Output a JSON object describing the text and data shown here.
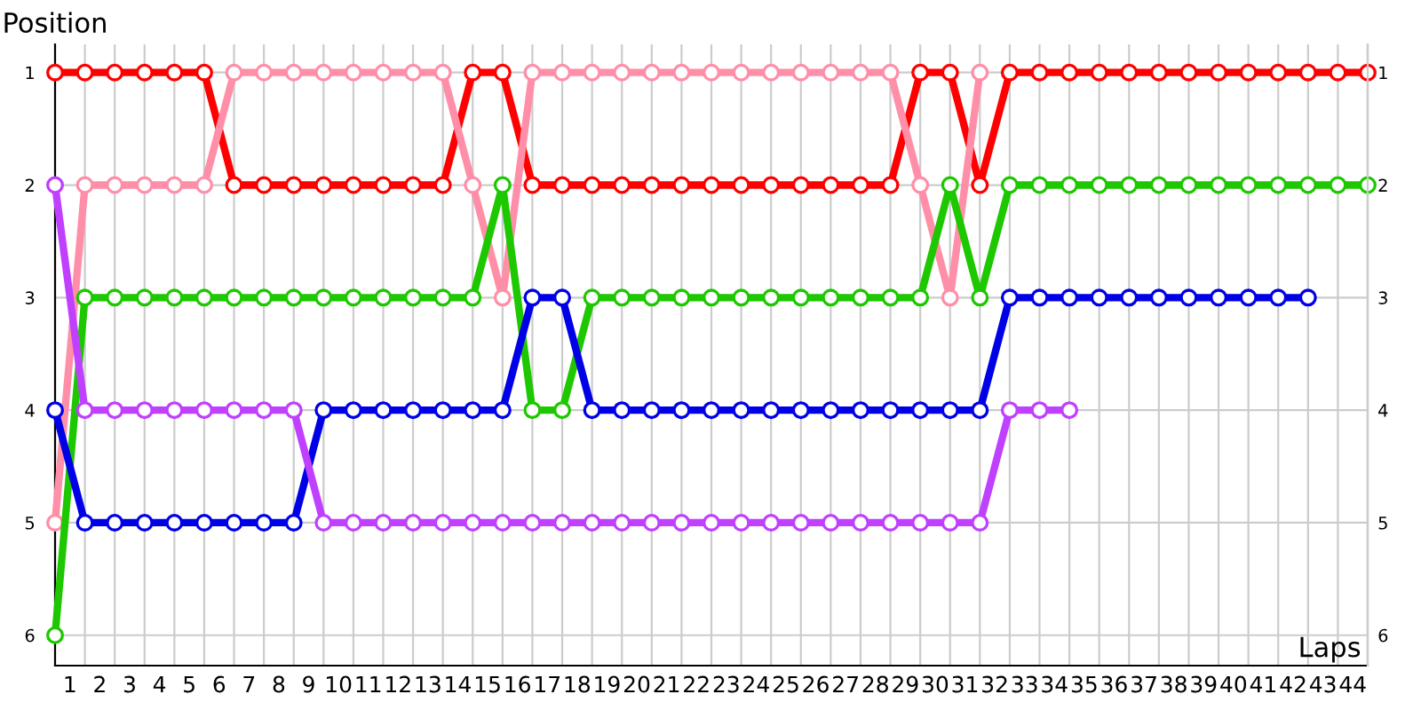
{
  "chart_data": {
    "type": "line",
    "xlabel": "Laps",
    "ylabel": "Position",
    "x": [
      0,
      1,
      2,
      3,
      4,
      5,
      6,
      7,
      8,
      9,
      10,
      11,
      12,
      13,
      14,
      15,
      16,
      17,
      18,
      19,
      20,
      21,
      22,
      23,
      24,
      25,
      26,
      27,
      28,
      29,
      30,
      31,
      32,
      33,
      34,
      35,
      36,
      37,
      38,
      39,
      40,
      41,
      42,
      43,
      44
    ],
    "series": [
      {
        "color": "#ff0000",
        "values": [
          1,
          1,
          1,
          1,
          1,
          1,
          2,
          2,
          2,
          2,
          2,
          2,
          2,
          2,
          1,
          1,
          2,
          2,
          2,
          2,
          2,
          2,
          2,
          2,
          2,
          2,
          2,
          2,
          2,
          1,
          1,
          2,
          1,
          1,
          1,
          1,
          1,
          1,
          1,
          1,
          1,
          1,
          1,
          1,
          1
        ]
      },
      {
        "color": "#ff8fa8",
        "values": [
          5,
          2,
          2,
          2,
          2,
          2,
          1,
          1,
          1,
          1,
          1,
          1,
          1,
          1,
          2,
          3,
          1,
          1,
          1,
          1,
          1,
          1,
          1,
          1,
          1,
          1,
          1,
          1,
          1,
          2,
          3,
          1,
          null,
          null,
          null,
          null,
          null,
          null,
          null,
          null,
          null,
          null,
          null,
          null,
          null
        ]
      },
      {
        "color": "#1ec800",
        "values": [
          6,
          3,
          3,
          3,
          3,
          3,
          3,
          3,
          3,
          3,
          3,
          3,
          3,
          3,
          3,
          2,
          4,
          4,
          3,
          3,
          3,
          3,
          3,
          3,
          3,
          3,
          3,
          3,
          3,
          3,
          2,
          3,
          2,
          2,
          2,
          2,
          2,
          2,
          2,
          2,
          2,
          2,
          2,
          2,
          2
        ]
      },
      {
        "color": "#0000e6",
        "values": [
          4,
          5,
          5,
          5,
          5,
          5,
          5,
          5,
          5,
          4,
          4,
          4,
          4,
          4,
          4,
          4,
          3,
          3,
          4,
          4,
          4,
          4,
          4,
          4,
          4,
          4,
          4,
          4,
          4,
          4,
          4,
          4,
          3,
          3,
          3,
          3,
          3,
          3,
          3,
          3,
          3,
          3,
          3,
          null,
          null
        ]
      },
      {
        "color": "#c040ff",
        "values": [
          2,
          4,
          4,
          4,
          4,
          4,
          4,
          4,
          4,
          5,
          5,
          5,
          5,
          5,
          5,
          5,
          5,
          5,
          5,
          5,
          5,
          5,
          5,
          5,
          5,
          5,
          5,
          5,
          5,
          5,
          5,
          5,
          4,
          4,
          4,
          null,
          null,
          null,
          null,
          null,
          null,
          null,
          null,
          null,
          null
        ]
      }
    ],
    "xlim": [
      0,
      44
    ],
    "xticks": [
      {
        "value": 0.5,
        "label": "1"
      },
      {
        "value": 1.5,
        "label": "2"
      },
      {
        "value": 2.5,
        "label": "3"
      },
      {
        "value": 3.5,
        "label": "4"
      },
      {
        "value": 4.5,
        "label": "5"
      },
      {
        "value": 5.5,
        "label": "6"
      },
      {
        "value": 6.5,
        "label": "7"
      },
      {
        "value": 7.5,
        "label": "8"
      },
      {
        "value": 8.5,
        "label": "9"
      },
      {
        "value": 9.5,
        "label": "10"
      },
      {
        "value": 10.5,
        "label": "11"
      },
      {
        "value": 11.5,
        "label": "12"
      },
      {
        "value": 12.5,
        "label": "13"
      },
      {
        "value": 13.5,
        "label": "14"
      },
      {
        "value": 14.5,
        "label": "15"
      },
      {
        "value": 15.5,
        "label": "16"
      },
      {
        "value": 16.5,
        "label": "17"
      },
      {
        "value": 17.5,
        "label": "18"
      },
      {
        "value": 18.5,
        "label": "19"
      },
      {
        "value": 19.5,
        "label": "20"
      },
      {
        "value": 20.5,
        "label": "21"
      },
      {
        "value": 21.5,
        "label": "22"
      },
      {
        "value": 22.5,
        "label": "23"
      },
      {
        "value": 23.5,
        "label": "24"
      },
      {
        "value": 24.5,
        "label": "25"
      },
      {
        "value": 25.5,
        "label": "26"
      },
      {
        "value": 26.5,
        "label": "27"
      },
      {
        "value": 27.5,
        "label": "28"
      },
      {
        "value": 28.5,
        "label": "29"
      },
      {
        "value": 29.5,
        "label": "30"
      },
      {
        "value": 30.5,
        "label": "31"
      },
      {
        "value": 31.5,
        "label": "32"
      },
      {
        "value": 32.5,
        "label": "33"
      },
      {
        "value": 33.5,
        "label": "34"
      },
      {
        "value": 34.5,
        "label": "35"
      },
      {
        "value": 35.5,
        "label": "36"
      },
      {
        "value": 36.5,
        "label": "37"
      },
      {
        "value": 37.5,
        "label": "38"
      },
      {
        "value": 38.5,
        "label": "39"
      },
      {
        "value": 39.5,
        "label": "40"
      },
      {
        "value": 40.5,
        "label": "41"
      },
      {
        "value": 41.5,
        "label": "42"
      },
      {
        "value": 42.5,
        "label": "43"
      },
      {
        "value": 43.5,
        "label": "44"
      }
    ],
    "ylim": [
      6.27,
      0.75
    ],
    "yticks": [
      1,
      2,
      3,
      4,
      5,
      6
    ],
    "y2lim": [
      6.27,
      0.75
    ],
    "y2ticks": [
      1,
      2,
      3,
      4,
      5,
      6
    ],
    "grid": true,
    "marker": "circle",
    "line_style": "solid",
    "legend": false
  }
}
